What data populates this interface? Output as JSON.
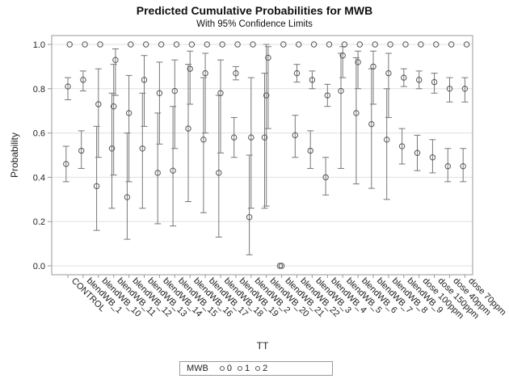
{
  "chart_data": {
    "type": "scatter",
    "title": "Predicted Cumulative Probabilities for MWB",
    "subtitle": "With 95% Confidence Limits",
    "xlabel": "TT",
    "ylabel": "Probability",
    "ylim": [
      0,
      1.0
    ],
    "yticks": [
      "0.0",
      "0.2",
      "0.4",
      "0.6",
      "0.8",
      "1.0"
    ],
    "grid": true,
    "legend_title": "MWB",
    "legend_position": "bottom",
    "categories": [
      "CONTROL",
      "blendWB_1",
      "blendWB_10",
      "blendWB_11",
      "blendWB_12",
      "blendWB_13",
      "blendWB_14",
      "blendWB_15",
      "blendWB_16",
      "blendWB_17",
      "blendWB_18",
      "blendWB_19",
      "blendWB_2",
      "blendWB_20",
      "blendWB_21",
      "blendWB_22",
      "blendWB_3",
      "blendWB_4",
      "blendWB_5",
      "blendWB_6",
      "blendWB_7",
      "blendWB_8",
      "blendWB_9",
      "dose 100ppm",
      "dose 150ppm",
      "dose 40ppm",
      "dose 70ppm"
    ],
    "series": [
      {
        "name": "0",
        "values": [
          0.46,
          0.52,
          0.36,
          0.53,
          0.31,
          0.53,
          0.42,
          0.43,
          0.62,
          0.57,
          0.42,
          0.58,
          0.22,
          0.58,
          0.0,
          0.59,
          0.52,
          0.4,
          0.79,
          0.69,
          0.64,
          0.57,
          0.54,
          0.51,
          0.49,
          0.45,
          0.45
        ],
        "lower": [
          0.38,
          0.44,
          0.16,
          0.26,
          0.12,
          0.26,
          0.19,
          0.18,
          0.29,
          0.24,
          0.13,
          0.49,
          0.05,
          0.26,
          0.0,
          0.49,
          0.44,
          0.32,
          0.44,
          0.37,
          0.35,
          0.3,
          0.46,
          0.43,
          0.42,
          0.38,
          0.38
        ],
        "upper": [
          0.54,
          0.61,
          0.63,
          0.78,
          0.6,
          0.78,
          0.69,
          0.72,
          0.91,
          0.85,
          0.77,
          0.67,
          0.5,
          0.87,
          0.0,
          0.68,
          0.61,
          0.49,
          0.96,
          0.94,
          0.89,
          0.8,
          0.62,
          0.59,
          0.57,
          0.53,
          0.53
        ]
      },
      {
        "name": "1",
        "values": [
          0.81,
          0.84,
          0.73,
          0.72,
          0.69,
          0.84,
          0.78,
          0.79,
          0.89,
          0.87,
          0.78,
          0.87,
          0.58,
          0.77,
          0.0,
          0.87,
          0.84,
          0.77,
          0.95,
          0.92,
          0.9,
          0.87,
          0.85,
          0.84,
          0.83,
          0.8,
          0.8
        ],
        "lower": [
          0.75,
          0.79,
          0.49,
          0.41,
          0.38,
          0.63,
          0.55,
          0.53,
          0.73,
          0.6,
          0.51,
          0.84,
          0.26,
          0.27,
          0.0,
          0.83,
          0.8,
          0.72,
          0.85,
          0.8,
          0.73,
          0.67,
          0.81,
          0.8,
          0.78,
          0.74,
          0.74
        ],
        "upper": [
          0.85,
          0.88,
          0.89,
          0.91,
          0.86,
          0.95,
          0.92,
          0.93,
          0.97,
          0.96,
          0.93,
          0.9,
          0.85,
          1.0,
          0.0,
          0.91,
          0.88,
          0.82,
          0.99,
          0.97,
          0.97,
          0.96,
          0.89,
          0.88,
          0.87,
          0.85,
          0.85
        ]
      },
      {
        "name": "2",
        "values": [
          1.0,
          1.0,
          1.0,
          0.93,
          1.0,
          1.0,
          1.0,
          1.0,
          1.0,
          1.0,
          1.0,
          1.0,
          1.0,
          0.94,
          1.0,
          1.0,
          1.0,
          1.0,
          1.0,
          1.0,
          1.0,
          1.0,
          1.0,
          1.0,
          1.0,
          1.0,
          1.0
        ],
        "lower": [
          1.0,
          1.0,
          1.0,
          0.77,
          1.0,
          1.0,
          1.0,
          1.0,
          1.0,
          1.0,
          1.0,
          1.0,
          1.0,
          0.62,
          1.0,
          1.0,
          1.0,
          1.0,
          1.0,
          1.0,
          1.0,
          1.0,
          1.0,
          1.0,
          1.0,
          1.0,
          1.0
        ],
        "upper": [
          1.0,
          1.0,
          1.0,
          0.98,
          1.0,
          1.0,
          1.0,
          1.0,
          1.0,
          1.0,
          1.0,
          1.0,
          1.0,
          0.99,
          1.0,
          1.0,
          1.0,
          1.0,
          1.0,
          1.0,
          1.0,
          1.0,
          1.0,
          1.0,
          1.0,
          1.0,
          1.0
        ]
      }
    ],
    "colors": {
      "marker": "#555555",
      "bar": "#777777",
      "grid": "#e0e0e0",
      "frame": "#999999"
    }
  }
}
